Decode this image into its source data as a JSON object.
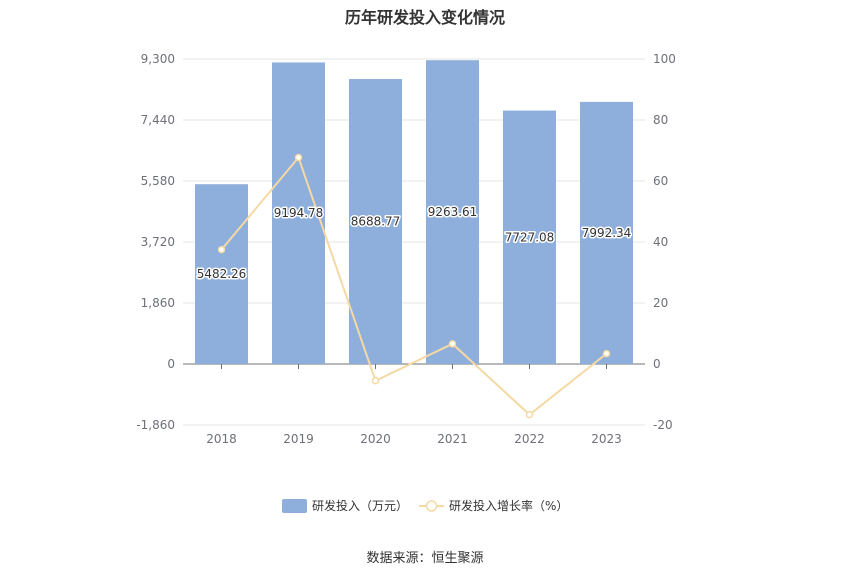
{
  "title": "历年研发投入变化情况",
  "source": "数据来源：恒生聚源",
  "colors": {
    "bar": "#8eaedb",
    "line": "#f5d9a4",
    "grid": "#e6e6e6",
    "axis": "#6e7079"
  },
  "chart_data": {
    "type": "bar",
    "title": "历年研发投入变化情况",
    "categories": [
      "2018",
      "2019",
      "2020",
      "2021",
      "2022",
      "2023"
    ],
    "y_left": {
      "ticks": [
        "9,300",
        "7,440",
        "5,580",
        "3,720",
        "1,860",
        "0",
        "-1,860"
      ],
      "ylim": [
        -1860,
        9300
      ]
    },
    "y_right": {
      "ticks": [
        "100",
        "80",
        "60",
        "40",
        "20",
        "0",
        "-20"
      ],
      "ylim": [
        -20,
        100
      ]
    },
    "series": [
      {
        "name": "研发投入（万元）",
        "type": "bar",
        "axis": "left",
        "values": [
          5482.26,
          9194.78,
          8688.77,
          9263.61,
          7727.08,
          7992.34
        ],
        "labels": [
          "5482.26",
          "9194.78",
          "8688.77",
          "9263.61",
          "7727.08",
          "7992.34"
        ]
      },
      {
        "name": "研发投入增长率（%）",
        "type": "line",
        "axis": "right",
        "values": [
          37.5,
          67.7,
          -5.5,
          6.6,
          -16.6,
          3.4
        ]
      }
    ],
    "grid": true,
    "legend": "bottom-center"
  }
}
